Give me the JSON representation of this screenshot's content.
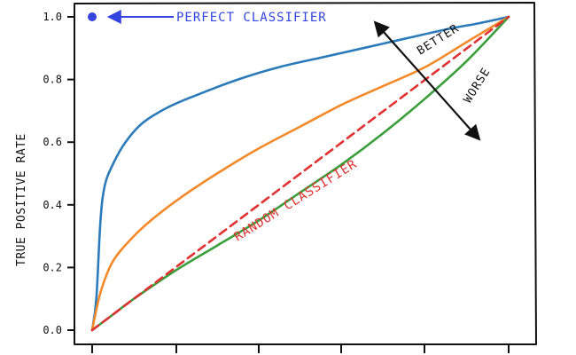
{
  "chart_data": {
    "type": "line",
    "title": "",
    "xlabel": "",
    "ylabel": "TRUE POSITIVE RATE",
    "xlim": [
      0,
      1
    ],
    "ylim": [
      0,
      1
    ],
    "y_ticks": [
      "0.0",
      "0.2",
      "0.4",
      "0.6",
      "0.8",
      "1.0"
    ],
    "series": [
      {
        "color": "#2b7bba",
        "style": "solid",
        "x": [
          0.0,
          0.01,
          0.02,
          0.03,
          0.05,
          0.08,
          0.12,
          0.18,
          0.25,
          0.35,
          0.45,
          0.55,
          0.65,
          0.75,
          0.85,
          0.93,
          1.0
        ],
        "y": [
          0.0,
          0.1,
          0.35,
          0.46,
          0.53,
          0.6,
          0.66,
          0.71,
          0.75,
          0.8,
          0.84,
          0.87,
          0.9,
          0.93,
          0.96,
          0.98,
          1.0
        ]
      },
      {
        "color": "#f28a2a",
        "style": "solid",
        "x": [
          0.0,
          0.02,
          0.05,
          0.1,
          0.15,
          0.22,
          0.3,
          0.4,
          0.5,
          0.6,
          0.7,
          0.8,
          0.9,
          1.0
        ],
        "y": [
          0.0,
          0.12,
          0.22,
          0.3,
          0.36,
          0.43,
          0.5,
          0.58,
          0.65,
          0.72,
          0.78,
          0.84,
          0.92,
          1.0
        ]
      },
      {
        "color": "#3a9e3a",
        "style": "solid",
        "x": [
          0.0,
          0.05,
          0.1,
          0.2,
          0.3,
          0.4,
          0.5,
          0.6,
          0.7,
          0.8,
          0.9,
          1.0
        ],
        "y": [
          0.0,
          0.05,
          0.1,
          0.19,
          0.27,
          0.35,
          0.44,
          0.53,
          0.63,
          0.74,
          0.86,
          1.0
        ]
      },
      {
        "color": "#e03232",
        "style": "dashed",
        "x": [
          0.0,
          1.0
        ],
        "y": [
          0.0,
          1.0
        ]
      }
    ],
    "points": [
      {
        "x": 0.0,
        "y": 1.0,
        "color": "#3344e0"
      }
    ],
    "grid": false
  },
  "annotations": {
    "perfect": "PERFECT CLASSIFIER",
    "random": "RANDOM CLASSIFIER",
    "better": "BETTER",
    "worse": "WORSE"
  },
  "colors": {
    "blue_annotation": "#3344e0",
    "red_annotation": "#e03232",
    "axis": "#111111"
  }
}
